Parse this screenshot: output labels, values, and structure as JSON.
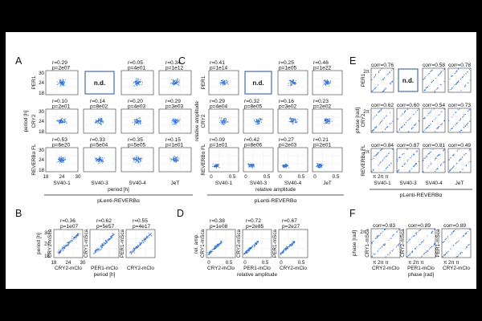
{
  "figure": {
    "panels": {
      "A": {
        "letter": "A",
        "rows": [
          "PER1",
          "CRY2",
          "REVERBα FL"
        ],
        "cols": [
          "SV40-1",
          "SV40-3",
          "SV40-4",
          "JeT"
        ],
        "ylabel": "period [h]",
        "xlabel": "period [h]",
        "yticks": [
          "30",
          "24",
          "18"
        ],
        "xticks": [
          "18",
          "24",
          "30"
        ],
        "nd": "n.d.",
        "cells": [
          [
            {
              "r": "r=0.29",
              "p": "p=2e07"
            },
            {
              "nd": true
            },
            {
              "r": "r=0.05",
              "p": "p=4e01"
            },
            {
              "r": "r=0.34",
              "p": "p=1e12"
            }
          ],
          [
            {
              "r": "r=0.10",
              "p": "p=2e01"
            },
            {
              "r": "r=0.14",
              "p": "p=8e02"
            },
            {
              "r": "r=0.20",
              "p": "p=4e03"
            },
            {
              "r": "r=0.29",
              "p": "p=3e03"
            }
          ],
          [
            {
              "r": "r=0.53",
              "p": "p=6e20"
            },
            {
              "r": "r=0.33",
              "p": "p=5e04"
            },
            {
              "r": "r=0.35",
              "p": "p=5e05"
            },
            {
              "r": "r=0.15",
              "p": "p=1e01"
            }
          ]
        ]
      },
      "C": {
        "letter": "C",
        "rows": [
          "PER1",
          "CRY2",
          "REVERBα FL"
        ],
        "cols": [
          "SV40-1",
          "SV40-3",
          "SV40-4",
          "JeT"
        ],
        "ylabel": "relative amplitude",
        "xlabel": "relative amplitude",
        "xticks": [
          "0",
          "0.5",
          "0",
          "0.5",
          "0",
          "0.5",
          "0",
          "0.5"
        ],
        "nd": "n.d.",
        "cells": [
          [
            {
              "r": "r=0.41",
              "p": "p=1e14"
            },
            {
              "nd": true
            },
            {
              "r": "r=0.25",
              "p": "p=1e05"
            },
            {
              "r": "r=0.46",
              "p": "p=1e22"
            }
          ],
          [
            {
              "r": "r=0.29",
              "p": "p=4e04"
            },
            {
              "r": "r=0.32",
              "p": "p=8e05"
            },
            {
              "r": "r=0.16",
              "p": "p=3e02"
            },
            {
              "r": "r=0.23",
              "p": "p=2e02"
            }
          ],
          [
            {
              "r": "r=0.09",
              "p": "p=1e01"
            },
            {
              "r": "r=0.42",
              "p": "p=8e06"
            },
            {
              "r": "r=0.27",
              "p": "p=2e03"
            },
            {
              "r": "r=0.21",
              "p": "p=2e01"
            }
          ]
        ]
      },
      "E": {
        "letter": "E",
        "rows": [
          "PER1",
          "CRY2",
          "REVERBα FL"
        ],
        "cols": [
          "SV40-1",
          "SV40-3",
          "SV40-4",
          "JeT"
        ],
        "ylabel": "phase [rad]",
        "xlabel": "phase [rad]",
        "ytick_2pi": "2π",
        "nd": "n.d.",
        "cells": [
          [
            {
              "r": "corr=0.76"
            },
            {
              "nd": true
            },
            {
              "r": "corr=0.58"
            },
            {
              "r": "corr=0.78"
            }
          ],
          [
            {
              "r": "corr=0.62"
            },
            {
              "r": "corr=0.60"
            },
            {
              "r": "corr=0.54"
            },
            {
              "r": "corr=0.73"
            }
          ],
          [
            {
              "r": "corr=0.84"
            },
            {
              "r": "corr=0.87"
            },
            {
              "r": "corr=0.81"
            },
            {
              "r": "corr=0.49"
            }
          ]
        ],
        "xtick_row": "π 2π π"
      },
      "B": {
        "letter": "B",
        "ylabel": "period [h]",
        "xlabel": "period [h]",
        "yticks": [
          "30",
          "24",
          "18"
        ],
        "xticks": [
          "18",
          "24",
          "30"
        ],
        "cells": [
          {
            "r": "r=0.36",
            "p": "p=1e07",
            "ylab": "CRY1-mSca",
            "xlab": "CRY2-mClo"
          },
          {
            "r": "r=0.62",
            "p": "p=5e57",
            "ylab": "CRY1-mSca",
            "xlab": "PER1-mClo"
          },
          {
            "r": "r=0.55",
            "p": "p=4e17",
            "ylab": "PER1-mSca",
            "xlab": "CRY2-mClo"
          }
        ]
      },
      "D": {
        "letter": "D",
        "ylabel": "rel. amp.",
        "xlabel": "relative amplitude",
        "xticks": [
          "0",
          "0.5"
        ],
        "cells": [
          {
            "r": "r=0.38",
            "p": "p=1e08",
            "ylab": "CRY1-mSca",
            "xlab": "CRY2-mClo"
          },
          {
            "r": "r=0.72",
            "p": "p=2e85",
            "ylab": "CRY2-mSca",
            "xlab": "PER1-mClo"
          },
          {
            "r": "r=0.67",
            "p": "p=2e27",
            "ylab": "PER1-mSca",
            "xlab": "CRY2-mClo"
          }
        ]
      },
      "F": {
        "letter": "F",
        "ylabel": "phase [rad]",
        "xlabel": "phase [rad]",
        "ytick_2pi": "2π",
        "cells": [
          {
            "r": "corr=0.83",
            "ylab": "CRY1-mSca",
            "xlab": "CRY2-mClo"
          },
          {
            "r": "corr=0.89",
            "ylab": "CRY2-mSca",
            "xlab": "PER1-mClo"
          },
          {
            "r": "corr=0.89",
            "ylab": "PER1-mSca",
            "xlab": "CRY2-mClo"
          }
        ],
        "xtick_row": "π 2π π"
      }
    },
    "bracket_label": "pLenti-REVERBα",
    "colors": {
      "dots": "#2f6fd0",
      "nd_box": "#4a6fa5",
      "axis": "#333333",
      "background": "#ffffff",
      "outer": "#000000"
    }
  }
}
